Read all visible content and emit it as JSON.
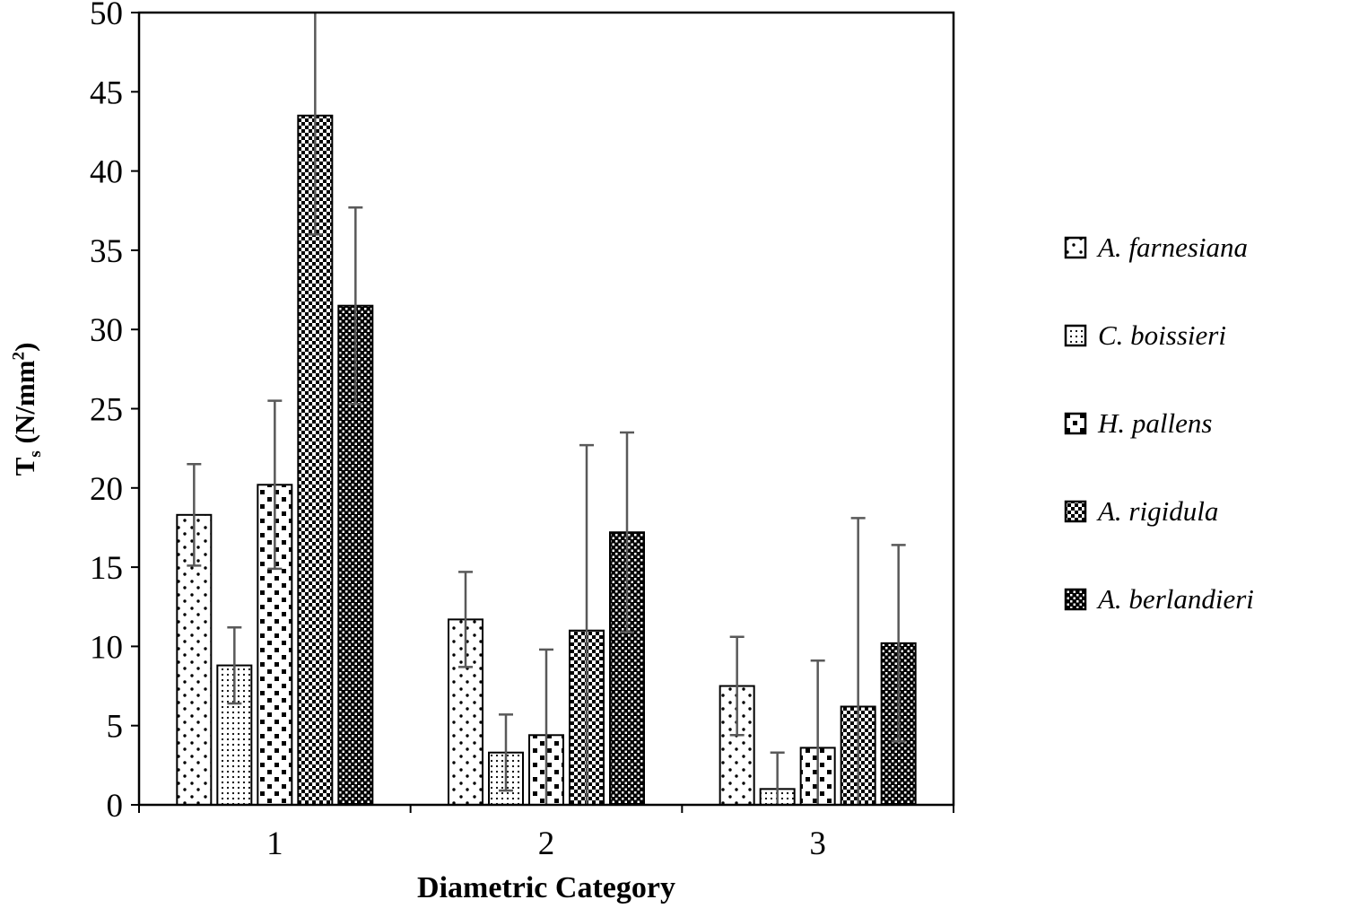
{
  "chart_data": {
    "type": "bar",
    "title": "",
    "xlabel": "Diametric Category",
    "ylabel": "Ts (N/mm2)",
    "ylabel_parts": {
      "t": "T",
      "sub": "s",
      "mid": " (N/mm",
      "sup": "2",
      "end": ")"
    },
    "categories": [
      "1",
      "2",
      "3"
    ],
    "ylim": [
      0,
      50
    ],
    "yticks": [
      0,
      5,
      10,
      15,
      20,
      25,
      30,
      35,
      40,
      45,
      50
    ],
    "grid": false,
    "legend_position": "right",
    "series": [
      {
        "name": "A. farnesiana",
        "pattern": "sparse-dots",
        "values": [
          18.3,
          11.7,
          7.5
        ],
        "errors": [
          3.2,
          3.0,
          3.1
        ]
      },
      {
        "name": "C. boissieri",
        "pattern": "fine-dots",
        "values": [
          8.8,
          3.3,
          1.0
        ],
        "errors": [
          2.4,
          2.4,
          2.3
        ]
      },
      {
        "name": "H. pallens",
        "pattern": "sparse-squares",
        "values": [
          20.2,
          4.4,
          3.6
        ],
        "errors": [
          5.3,
          5.4,
          5.5
        ]
      },
      {
        "name": "A. rigidula",
        "pattern": "checker",
        "values": [
          43.5,
          11.0,
          6.2
        ],
        "errors": [
          7.5,
          11.7,
          11.9
        ]
      },
      {
        "name": "A. berlandieri",
        "pattern": "dark-checker",
        "values": [
          31.5,
          17.2,
          10.2
        ],
        "errors": [
          6.2,
          6.3,
          6.2
        ]
      }
    ]
  },
  "colors": {
    "bar_stroke": "#000000",
    "error_bar": "#595959",
    "axis": "#000000",
    "background": "#ffffff"
  }
}
